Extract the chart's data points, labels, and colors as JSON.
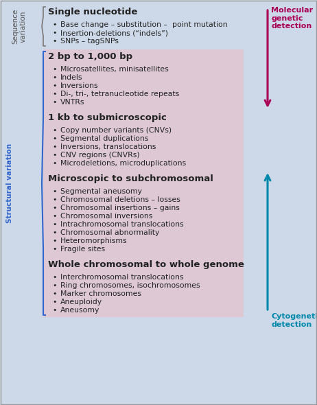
{
  "bg_color": "#cdd9e8",
  "pink_bg_color": "#ddc8d4",
  "sections": [
    {
      "header": "Single nucleotide",
      "items": [
        "Base change – substitution –  point mutation",
        "Insertion-deletions (“indels”)",
        "SNPs – tagSNPs"
      ],
      "pink": false
    },
    {
      "header": "2 bp to 1,000 bp",
      "items": [
        "Microsatellites, minisatellites",
        "Indels",
        "Inversions",
        "Di-, tri-, tetranucleotide repeats",
        "VNTRs"
      ],
      "pink": true
    },
    {
      "header": "1 kb to submicroscopic",
      "items": [
        "Copy number variants (CNVs)",
        "Segmental duplications",
        "Inversions, translocations",
        "CNV regions (CNVRs)",
        "Microdeletions, microduplications"
      ],
      "pink": true
    },
    {
      "header": "Microscopic to subchromosomal",
      "items": [
        "Segmental aneusomy",
        "Chromosomal deletions – losses",
        "Chromosomal insertions – gains",
        "Chromosomal inversions",
        "Intrachromosomal translocations",
        "Chromosomal abnormality",
        "Heteromorphisms",
        "Fragile sites"
      ],
      "pink": true
    },
    {
      "header": "Whole chromosomal to whole genome",
      "items": [
        "Interchromosomal translocations",
        "Ring chromosomes, isochromosomes",
        "Marker chromosomes",
        "Aneuploidy",
        "Aneusomy"
      ],
      "pink": true
    }
  ],
  "seq_label": "Sequence\nvariation",
  "struct_label": "Structural variation",
  "mol_label": "Molecular\ngenetic\ndetection",
  "cyto_label": "Cytogenetic\ndetection",
  "mol_color": "#aa0055",
  "cyto_color": "#0088aa",
  "label_color": "#3366cc",
  "text_color": "#222222",
  "header_fontsize": 9.5,
  "item_fontsize": 7.8,
  "side_label_fontsize": 7.5,
  "arrow_label_fontsize": 8.0
}
